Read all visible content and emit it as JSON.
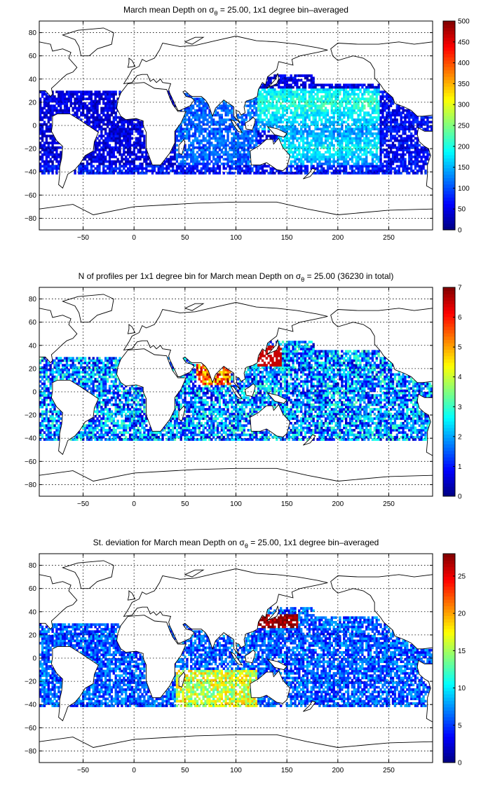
{
  "chart_data": [
    {
      "type": "heatmap",
      "title_prefix": "March mean Depth on σ",
      "title_subscript": "θ",
      "title_suffix": " = 25.00, 1x1 degree bin–averaged",
      "xlim": [
        -93,
        293
      ],
      "ylim": [
        -90,
        90
      ],
      "xticks": [
        -50,
        0,
        50,
        100,
        150,
        200,
        250
      ],
      "xticklabels": [
        "−50",
        "0",
        "50",
        "100",
        "150",
        "200",
        "250"
      ],
      "yticks": [
        80,
        60,
        40,
        20,
        0,
        -20,
        -40,
        -60,
        -80
      ],
      "yticklabels": [
        "80",
        "60",
        "40",
        "20",
        "0",
        "−20",
        "−40",
        "−60",
        "−80"
      ],
      "grid": true,
      "colormap": "jet",
      "colorbar": {
        "range": [
          0,
          500
        ],
        "ticks": [
          0,
          50,
          100,
          150,
          200,
          250,
          300,
          350,
          400,
          450,
          500
        ],
        "ticklabels": [
          "0",
          "50",
          "100",
          "150",
          "200",
          "250",
          "300",
          "350",
          "400",
          "450",
          "500"
        ]
      },
      "field": "mean_depth",
      "approx_regions": [
        {
          "region": "tropical Atlantic / Indian south of 20°N",
          "value": 50
        },
        {
          "region": "Indian Ocean",
          "value": 120
        },
        {
          "region": "western North Pacific subtropics",
          "value": 220
        },
        {
          "region": "central South Pacific",
          "value": 200
        },
        {
          "region": "eastern Pacific",
          "value": 60
        }
      ]
    },
    {
      "type": "heatmap",
      "title_prefix": "N of profiles per 1x1 degree bin for March mean Depth on σ",
      "title_subscript": "θ",
      "title_suffix": " = 25.00 (36230 in total)",
      "xlim": [
        -93,
        293
      ],
      "ylim": [
        -90,
        90
      ],
      "xticks": [
        -50,
        0,
        50,
        100,
        150,
        200,
        250
      ],
      "xticklabels": [
        "−50",
        "0",
        "50",
        "100",
        "150",
        "200",
        "250"
      ],
      "yticks": [
        80,
        60,
        40,
        20,
        0,
        -20,
        -40,
        -60,
        -80
      ],
      "yticklabels": [
        "80",
        "60",
        "40",
        "20",
        "0",
        "−20",
        "−40",
        "−60",
        "−80"
      ],
      "grid": true,
      "colormap": "jet",
      "colorbar": {
        "range": [
          0,
          7
        ],
        "ticks": [
          0,
          1,
          2,
          3,
          4,
          5,
          6,
          7
        ],
        "ticklabels": [
          "0",
          "1",
          "2",
          "3",
          "4",
          "5",
          "6",
          "7"
        ]
      },
      "field": "profile_count",
      "approx_regions": [
        {
          "region": "open ocean typical",
          "value": 2
        },
        {
          "region": "Kuroshio / East China Sea",
          "value": 7
        },
        {
          "region": "Arabian Sea / Bay of Bengal",
          "value": 6
        }
      ]
    },
    {
      "type": "heatmap",
      "title_prefix": "St. deviation for March mean Depth on σ",
      "title_subscript": "θ",
      "title_suffix": " = 25.00, 1x1 degree bin–averaged",
      "xlim": [
        -93,
        293
      ],
      "ylim": [
        -90,
        90
      ],
      "xticks": [
        -50,
        0,
        50,
        100,
        150,
        200,
        250
      ],
      "xticklabels": [
        "−50",
        "0",
        "50",
        "100",
        "150",
        "200",
        "250"
      ],
      "yticks": [
        80,
        60,
        40,
        20,
        0,
        -20,
        -40,
        -60,
        -80
      ],
      "yticklabels": [
        "80",
        "60",
        "40",
        "20",
        "0",
        "−20",
        "−40",
        "−60",
        "−80"
      ],
      "grid": true,
      "colormap": "jet",
      "colorbar": {
        "range": [
          0,
          28
        ],
        "ticks": [
          0,
          5,
          10,
          15,
          20,
          25
        ],
        "ticklabels": [
          "0",
          "5",
          "10",
          "15",
          "20",
          "25"
        ]
      },
      "field": "std_depth",
      "approx_regions": [
        {
          "region": "open ocean typical",
          "value": 6
        },
        {
          "region": "Kuroshio extension",
          "value": 28
        },
        {
          "region": "Indian Ocean south",
          "value": 14
        }
      ]
    }
  ]
}
